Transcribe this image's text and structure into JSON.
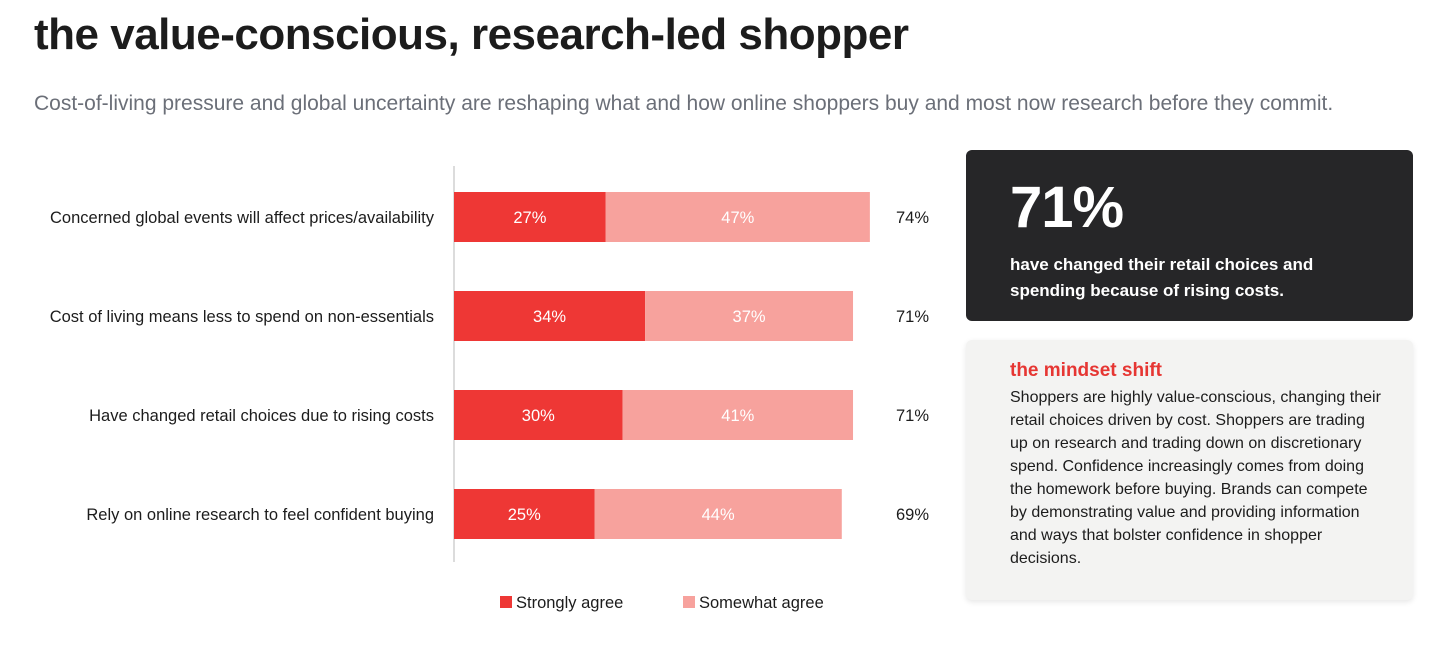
{
  "header": {
    "title": "the value-conscious, research-led shopper",
    "subtitle": "Cost-of-living pressure and global uncertainty are reshaping what and how online shoppers buy and most now research before they commit."
  },
  "chart_data": {
    "type": "bar",
    "orientation": "horizontal",
    "stacked": true,
    "categories": [
      "Concerned global events will affect prices/availability",
      "Cost of living means less to spend on non-essentials",
      "Have changed retail choices due to rising costs",
      "Rely on online research to feel confident buying"
    ],
    "series": [
      {
        "name": "Strongly agree",
        "values": [
          27,
          34,
          30,
          25
        ],
        "labels": [
          "27%",
          "34%",
          "30%",
          "25%"
        ],
        "color": "#ee3735"
      },
      {
        "name": "Somewhat agree",
        "values": [
          47,
          37,
          41,
          44
        ],
        "labels": [
          "47%",
          "37%",
          "41%",
          "44%"
        ],
        "color": "#f7a29d"
      }
    ],
    "totals": [
      "74%",
      "71%",
      "71%",
      "69%"
    ],
    "legend_position": "bottom",
    "grid": false
  },
  "stat_card": {
    "value": "71%",
    "text": "have changed their retail choices and spending because of rising costs.",
    "background": "#262628"
  },
  "mindset": {
    "heading": "the mindset shift",
    "body": "Shoppers are highly value-conscious, changing their retail choices driven by cost. Shoppers are trading up on research and trading down on discretionary spend. Confidence increasingly comes from doing the homework before buying. Brands can compete by demonstrating value and providing information and ways that bolster confidence in shopper decisions.",
    "accent": "#e63633"
  }
}
